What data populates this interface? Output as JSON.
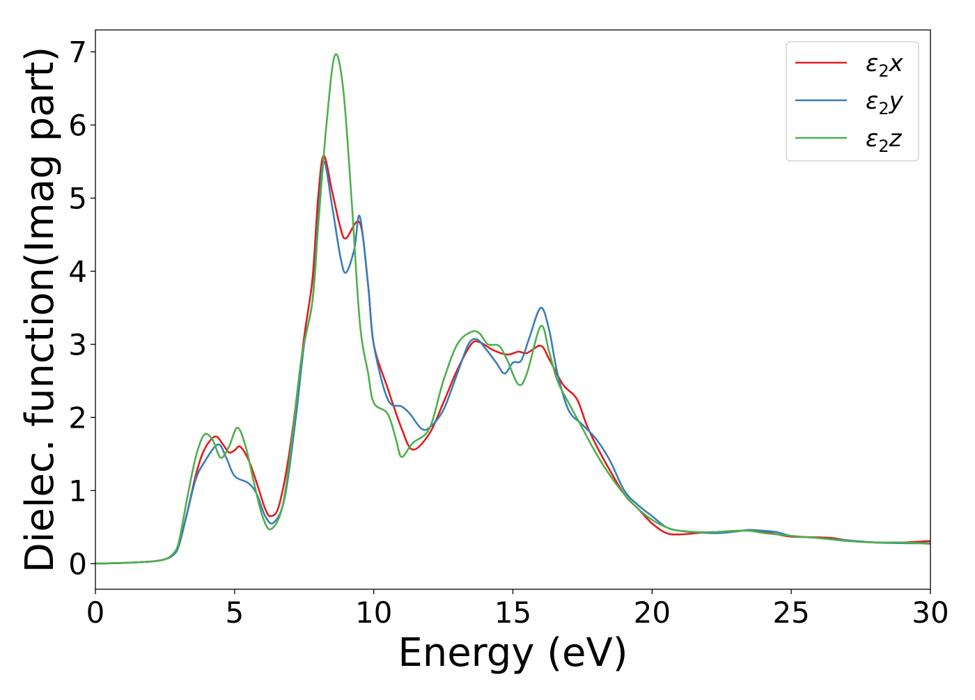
{
  "chart_data": {
    "type": "line",
    "title": "",
    "xlabel": "Energy (eV)",
    "ylabel": "Dielec. function(Imag part)",
    "xlim": [
      0,
      30
    ],
    "ylim": [
      -0.35,
      7.3
    ],
    "xticks": [
      0,
      5,
      10,
      15,
      20,
      25,
      30
    ],
    "yticks": [
      0,
      1,
      2,
      3,
      4,
      5,
      6,
      7
    ],
    "grid": false,
    "legend_position": "top-right",
    "series": [
      {
        "name": "ε₂x",
        "legend_base": "ε",
        "legend_sub": "2",
        "legend_suffix": "x",
        "color": "#e41a1c",
        "points": [
          [
            0,
            0
          ],
          [
            1,
            0.01
          ],
          [
            2,
            0.03
          ],
          [
            2.5,
            0.06
          ],
          [
            2.8,
            0.12
          ],
          [
            3.0,
            0.25
          ],
          [
            3.3,
            0.7
          ],
          [
            3.6,
            1.2
          ],
          [
            3.9,
            1.55
          ],
          [
            4.3,
            1.74
          ],
          [
            4.6,
            1.62
          ],
          [
            4.8,
            1.52
          ],
          [
            5.0,
            1.55
          ],
          [
            5.2,
            1.6
          ],
          [
            5.5,
            1.42
          ],
          [
            5.8,
            1.1
          ],
          [
            6.1,
            0.75
          ],
          [
            6.3,
            0.65
          ],
          [
            6.6,
            0.8
          ],
          [
            7.0,
            1.6
          ],
          [
            7.5,
            3.1
          ],
          [
            7.8,
            3.9
          ],
          [
            8.0,
            5.0
          ],
          [
            8.2,
            5.58
          ],
          [
            8.5,
            5.1
          ],
          [
            8.8,
            4.6
          ],
          [
            9.0,
            4.45
          ],
          [
            9.5,
            4.66
          ],
          [
            9.8,
            3.8
          ],
          [
            10.0,
            3.0
          ],
          [
            10.5,
            2.4
          ],
          [
            11.0,
            1.85
          ],
          [
            11.4,
            1.56
          ],
          [
            12.0,
            1.78
          ],
          [
            12.5,
            2.2
          ],
          [
            13.0,
            2.65
          ],
          [
            13.5,
            3.0
          ],
          [
            13.8,
            3.03
          ],
          [
            14.3,
            2.92
          ],
          [
            14.8,
            2.86
          ],
          [
            15.2,
            2.9
          ],
          [
            15.5,
            2.88
          ],
          [
            16.0,
            2.98
          ],
          [
            16.3,
            2.8
          ],
          [
            16.8,
            2.45
          ],
          [
            17.3,
            2.25
          ],
          [
            17.7,
            1.85
          ],
          [
            18.3,
            1.4
          ],
          [
            19.0,
            0.95
          ],
          [
            19.5,
            0.75
          ],
          [
            20.0,
            0.55
          ],
          [
            20.5,
            0.42
          ],
          [
            21.0,
            0.4
          ],
          [
            22.0,
            0.43
          ],
          [
            22.5,
            0.43
          ],
          [
            23.0,
            0.44
          ],
          [
            23.5,
            0.46
          ],
          [
            24.0,
            0.44
          ],
          [
            24.5,
            0.4
          ],
          [
            25.0,
            0.37
          ],
          [
            26.0,
            0.36
          ],
          [
            26.5,
            0.35
          ],
          [
            27.0,
            0.32
          ],
          [
            28.0,
            0.29
          ],
          [
            29.0,
            0.29
          ],
          [
            30.0,
            0.31
          ]
        ]
      },
      {
        "name": "ε₂y",
        "legend_base": "ε",
        "legend_sub": "2",
        "legend_suffix": "y",
        "color": "#377eb8",
        "points": [
          [
            0,
            0
          ],
          [
            1,
            0.01
          ],
          [
            2,
            0.03
          ],
          [
            2.5,
            0.06
          ],
          [
            2.8,
            0.12
          ],
          [
            3.0,
            0.25
          ],
          [
            3.3,
            0.7
          ],
          [
            3.6,
            1.15
          ],
          [
            3.9,
            1.38
          ],
          [
            4.4,
            1.63
          ],
          [
            4.7,
            1.45
          ],
          [
            5.0,
            1.2
          ],
          [
            5.5,
            1.1
          ],
          [
            5.8,
            0.95
          ],
          [
            6.1,
            0.65
          ],
          [
            6.4,
            0.56
          ],
          [
            6.8,
            0.9
          ],
          [
            7.2,
            2.0
          ],
          [
            7.5,
            3.0
          ],
          [
            7.8,
            3.6
          ],
          [
            8.0,
            4.7
          ],
          [
            8.2,
            5.5
          ],
          [
            8.5,
            4.9
          ],
          [
            8.8,
            4.2
          ],
          [
            9.0,
            3.98
          ],
          [
            9.3,
            4.3
          ],
          [
            9.5,
            4.75
          ],
          [
            9.8,
            3.8
          ],
          [
            10.0,
            3.0
          ],
          [
            10.5,
            2.25
          ],
          [
            11.0,
            2.15
          ],
          [
            11.3,
            2.05
          ],
          [
            11.7,
            1.85
          ],
          [
            12.0,
            1.86
          ],
          [
            12.5,
            2.1
          ],
          [
            13.0,
            2.6
          ],
          [
            13.4,
            3.0
          ],
          [
            13.7,
            3.07
          ],
          [
            14.0,
            2.95
          ],
          [
            14.4,
            2.75
          ],
          [
            14.7,
            2.6
          ],
          [
            15.0,
            2.75
          ],
          [
            15.3,
            2.78
          ],
          [
            15.6,
            3.1
          ],
          [
            16.0,
            3.5
          ],
          [
            16.3,
            3.2
          ],
          [
            16.6,
            2.6
          ],
          [
            17.0,
            2.1
          ],
          [
            17.5,
            1.9
          ],
          [
            18.0,
            1.7
          ],
          [
            18.5,
            1.4
          ],
          [
            19.0,
            1.0
          ],
          [
            19.5,
            0.8
          ],
          [
            20.0,
            0.65
          ],
          [
            20.5,
            0.5
          ],
          [
            21.0,
            0.45
          ],
          [
            22.0,
            0.42
          ],
          [
            22.5,
            0.42
          ],
          [
            23.0,
            0.44
          ],
          [
            23.5,
            0.46
          ],
          [
            24.0,
            0.45
          ],
          [
            24.5,
            0.43
          ],
          [
            25.0,
            0.38
          ],
          [
            26.0,
            0.35
          ],
          [
            27.0,
            0.32
          ],
          [
            28.0,
            0.29
          ],
          [
            29.0,
            0.28
          ],
          [
            30.0,
            0.28
          ]
        ]
      },
      {
        "name": "ε₂z",
        "legend_base": "ε",
        "legend_sub": "2",
        "legend_suffix": "z",
        "color": "#4daf4a",
        "points": [
          [
            0,
            0
          ],
          [
            1,
            0.01
          ],
          [
            2,
            0.03
          ],
          [
            2.5,
            0.06
          ],
          [
            2.8,
            0.14
          ],
          [
            3.0,
            0.3
          ],
          [
            3.3,
            0.9
          ],
          [
            3.6,
            1.45
          ],
          [
            3.9,
            1.76
          ],
          [
            4.2,
            1.7
          ],
          [
            4.5,
            1.45
          ],
          [
            4.8,
            1.6
          ],
          [
            5.1,
            1.86
          ],
          [
            5.4,
            1.6
          ],
          [
            5.7,
            1.1
          ],
          [
            6.0,
            0.65
          ],
          [
            6.3,
            0.47
          ],
          [
            6.7,
            0.75
          ],
          [
            7.0,
            1.5
          ],
          [
            7.4,
            2.8
          ],
          [
            7.8,
            3.6
          ],
          [
            8.0,
            4.6
          ],
          [
            8.3,
            6.0
          ],
          [
            8.6,
            6.95
          ],
          [
            8.9,
            6.5
          ],
          [
            9.2,
            5.0
          ],
          [
            9.5,
            3.3
          ],
          [
            9.8,
            2.6
          ],
          [
            10.0,
            2.2
          ],
          [
            10.5,
            2.05
          ],
          [
            10.8,
            1.7
          ],
          [
            11.0,
            1.46
          ],
          [
            11.4,
            1.65
          ],
          [
            12.0,
            1.85
          ],
          [
            12.5,
            2.5
          ],
          [
            13.0,
            3.0
          ],
          [
            13.5,
            3.17
          ],
          [
            13.8,
            3.15
          ],
          [
            14.1,
            3.0
          ],
          [
            14.5,
            2.98
          ],
          [
            14.8,
            2.78
          ],
          [
            15.2,
            2.45
          ],
          [
            15.5,
            2.6
          ],
          [
            16.0,
            3.25
          ],
          [
            16.3,
            2.9
          ],
          [
            16.6,
            2.5
          ],
          [
            17.0,
            2.2
          ],
          [
            17.5,
            1.85
          ],
          [
            18.0,
            1.5
          ],
          [
            18.5,
            1.2
          ],
          [
            19.0,
            0.95
          ],
          [
            19.5,
            0.75
          ],
          [
            20.0,
            0.6
          ],
          [
            20.5,
            0.5
          ],
          [
            21.0,
            0.45
          ],
          [
            22.0,
            0.43
          ],
          [
            23.0,
            0.45
          ],
          [
            23.5,
            0.45
          ],
          [
            24.0,
            0.42
          ],
          [
            24.5,
            0.4
          ],
          [
            25.0,
            0.38
          ],
          [
            26.0,
            0.35
          ],
          [
            27.0,
            0.31
          ],
          [
            28.0,
            0.29
          ],
          [
            29.0,
            0.29
          ],
          [
            30.0,
            0.27
          ]
        ]
      }
    ]
  }
}
